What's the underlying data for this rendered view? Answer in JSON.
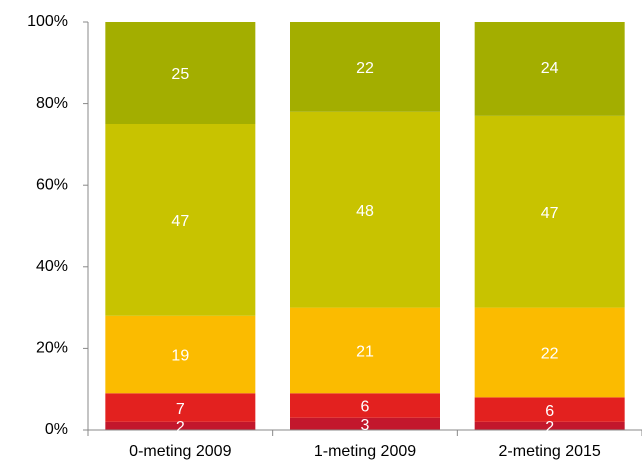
{
  "chart_data": {
    "type": "stacked_bar",
    "categories": [
      "0-meting 2009",
      "1-meting 2009",
      "2-meting 2015"
    ],
    "series": [
      {
        "color": "#c3172c",
        "values": [
          2,
          3,
          2
        ]
      },
      {
        "color": "#e3211f",
        "values": [
          7,
          6,
          6
        ]
      },
      {
        "color": "#fbbb00",
        "values": [
          19,
          21,
          22
        ]
      },
      {
        "color": "#c8c300",
        "values": [
          47,
          48,
          47
        ]
      },
      {
        "color": "#a3ae00",
        "values": [
          25,
          22,
          24
        ]
      }
    ],
    "ylim": [
      0,
      100
    ],
    "yticks": [
      {
        "value": 0,
        "label": "0%"
      },
      {
        "value": 20,
        "label": "20%"
      },
      {
        "value": 40,
        "label": "40%"
      },
      {
        "value": 60,
        "label": "60%"
      },
      {
        "value": 80,
        "label": "80%"
      },
      {
        "value": 100,
        "label": "100%"
      }
    ]
  }
}
